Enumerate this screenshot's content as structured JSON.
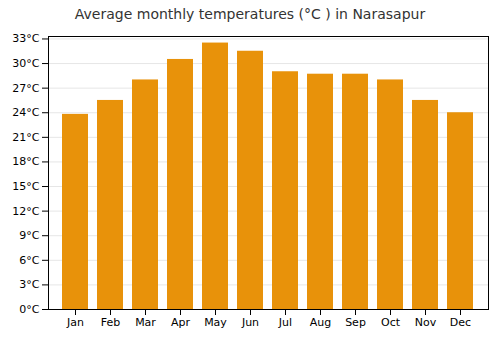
{
  "chart_data": {
    "type": "bar",
    "title": "Average monthly temperatures (°C ) in Narasapur",
    "categories": [
      "Jan",
      "Feb",
      "Mar",
      "Apr",
      "May",
      "Jun",
      "Jul",
      "Aug",
      "Sep",
      "Oct",
      "Nov",
      "Dec"
    ],
    "values": [
      23.8,
      25.5,
      28.0,
      30.5,
      32.5,
      31.5,
      29.0,
      28.7,
      28.7,
      28.0,
      25.5,
      24.0
    ],
    "color": "#E8920A",
    "ylim": [
      0,
      33.3
    ],
    "yticks": [
      {
        "value": 0,
        "label": "0°C"
      },
      {
        "value": 3,
        "label": "3°C"
      },
      {
        "value": 6,
        "label": "6°C"
      },
      {
        "value": 9,
        "label": "9°C"
      },
      {
        "value": 12,
        "label": "12°C"
      },
      {
        "value": 15,
        "label": "15°C"
      },
      {
        "value": 18,
        "label": "18°C"
      },
      {
        "value": 21,
        "label": "21°C"
      },
      {
        "value": 24,
        "label": "24°C"
      },
      {
        "value": 27,
        "label": "27°C"
      },
      {
        "value": 30,
        "label": "30°C"
      },
      {
        "value": 33,
        "label": "33°C"
      }
    ],
    "grid": true
  }
}
